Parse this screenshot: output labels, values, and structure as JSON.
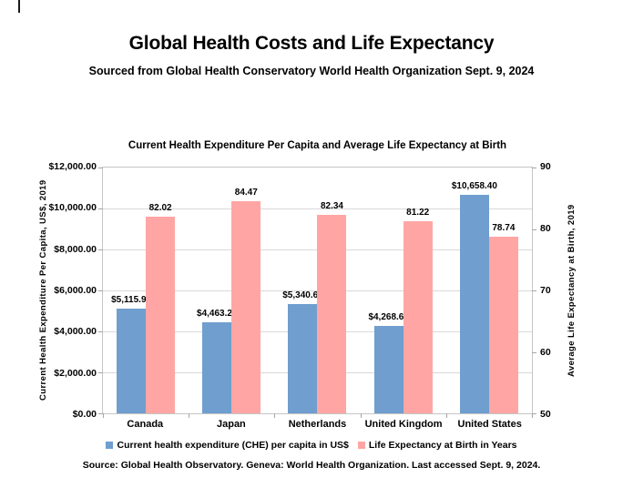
{
  "page": {
    "title": "Global Health Costs and Life Expectancy",
    "subtitle": "Sourced from Global Health Conservatory World Health Organization Sept. 9, 2024"
  },
  "chart": {
    "title": "Current Health Expenditure Per Capita and Average Life Expectancy at Birth",
    "source": "Source: Global Health Observatory. Geneva: World Health Organization. Last accessed Sept. 9, 2024.",
    "colors": {
      "che_bar": "#6F9ECF",
      "life_bar": "#FFA6A4",
      "gridline": "#D9D9D9",
      "plot_border": "#C6C6C6"
    }
  },
  "chart_data": {
    "type": "bar",
    "title": "Current Health Expenditure Per Capita and Average Life Expectancy at Birth",
    "categories": [
      "Canada",
      "Japan",
      "Netherlands",
      "United Kingdom",
      "United States"
    ],
    "series": [
      {
        "name": "Current health expenditure (CHE) per capita in US$",
        "axis": "left",
        "color": "#6F9ECF",
        "values": [
          5115.98,
          4463.28,
          5340.61,
          4268.68,
          10658.4
        ],
        "labels": [
          "$5,115.98",
          "$4,463.28",
          "$5,340.61",
          "$4,268.68",
          "$10,658.40"
        ]
      },
      {
        "name": "Life Expectancy at Birth in Years",
        "axis": "right",
        "color": "#FFA6A4",
        "values": [
          82.02,
          84.47,
          82.34,
          81.22,
          78.74
        ],
        "labels": [
          "82.02",
          "84.47",
          "82.34",
          "81.22",
          "78.74"
        ]
      }
    ],
    "left_axis": {
      "title": "Current Health Expenditure Per Capita, US$, 2019",
      "min": 0,
      "max": 12000,
      "tick_labels": [
        "$12,000.00",
        "$10,000.00",
        "$8,000.00",
        "$6,000.00",
        "$4,000.00",
        "$2,000.00",
        "$0.00"
      ]
    },
    "right_axis": {
      "title": "Average Life Expectancy at Birth, 2019",
      "min": 50,
      "max": 90,
      "tick_labels": [
        "90",
        "80",
        "70",
        "60",
        "50"
      ]
    },
    "legend_position": "bottom",
    "grid": true
  }
}
